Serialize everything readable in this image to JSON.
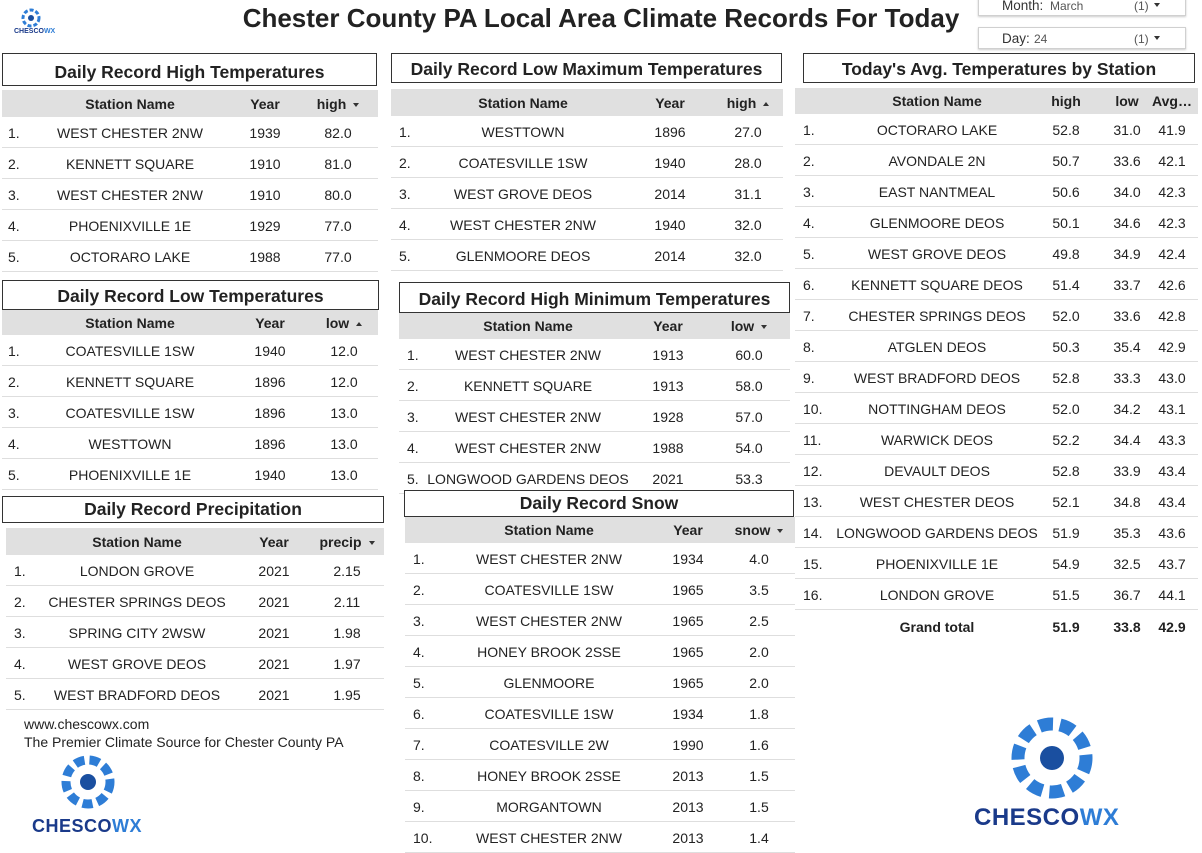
{
  "header": {
    "title": "Chester County PA Local Area Climate Records For Today",
    "logo": [
      "CHESCO",
      "WX"
    ]
  },
  "filters": [
    {
      "label": "Month:",
      "value": "March",
      "count": "(1)"
    },
    {
      "label": "Day:",
      "value": "24",
      "count": "(1)"
    }
  ],
  "tables": [
    {
      "title": "Daily Record High Temperatures",
      "columns": [
        "Station Name",
        "Year",
        "high"
      ],
      "sort_column": 2,
      "sort": "desc",
      "rows": [
        [
          "1.",
          "WEST CHESTER 2NW",
          "1939",
          "82.0"
        ],
        [
          "2.",
          "KENNETT SQUARE",
          "1910",
          "81.0"
        ],
        [
          "3.",
          "WEST CHESTER 2NW",
          "1910",
          "80.0"
        ],
        [
          "4.",
          "PHOENIXVILLE 1E",
          "1929",
          "77.0"
        ],
        [
          "5.",
          "OCTORARO LAKE",
          "1988",
          "77.0"
        ]
      ]
    },
    {
      "title": "Daily Record Low Maximum Temperatures",
      "columns": [
        "Station Name",
        "Year",
        "high"
      ],
      "sort_column": 2,
      "sort": "asc",
      "rows": [
        [
          "1.",
          "WESTTOWN",
          "1896",
          "27.0"
        ],
        [
          "2.",
          "COATESVILLE 1SW",
          "1940",
          "28.0"
        ],
        [
          "3.",
          "WEST GROVE DEOS",
          "2014",
          "31.1"
        ],
        [
          "4.",
          "WEST CHESTER 2NW",
          "1940",
          "32.0"
        ],
        [
          "5.",
          "GLENMOORE DEOS",
          "2014",
          "32.0"
        ]
      ]
    },
    {
      "title": "Today's Avg. Temperatures by Station",
      "columns": [
        "Station Name",
        "high",
        "low",
        "Avg…"
      ],
      "rows": [
        [
          "1.",
          "OCTORARO LAKE",
          "52.8",
          "31.0",
          "41.9"
        ],
        [
          "2.",
          "AVONDALE 2N",
          "50.7",
          "33.6",
          "42.1"
        ],
        [
          "3.",
          "EAST NANTMEAL",
          "50.6",
          "34.0",
          "42.3"
        ],
        [
          "4.",
          "GLENMOORE DEOS",
          "50.1",
          "34.6",
          "42.3"
        ],
        [
          "5.",
          "WEST GROVE DEOS",
          "49.8",
          "34.9",
          "42.4"
        ],
        [
          "6.",
          "KENNETT SQUARE DEOS",
          "51.4",
          "33.7",
          "42.6"
        ],
        [
          "7.",
          "CHESTER SPRINGS DEOS",
          "52.0",
          "33.6",
          "42.8"
        ],
        [
          "8.",
          "ATGLEN DEOS",
          "50.3",
          "35.4",
          "42.9"
        ],
        [
          "9.",
          "WEST BRADFORD DEOS",
          "52.8",
          "33.3",
          "43.0"
        ],
        [
          "10.",
          "NOTTINGHAM DEOS",
          "52.0",
          "34.2",
          "43.1"
        ],
        [
          "11.",
          "WARWICK DEOS",
          "52.2",
          "34.4",
          "43.3"
        ],
        [
          "12.",
          "DEVAULT DEOS",
          "52.8",
          "33.9",
          "43.4"
        ],
        [
          "13.",
          "WEST CHESTER DEOS",
          "52.1",
          "34.8",
          "43.4"
        ],
        [
          "14.",
          "LONGWOOD GARDENS DEOS",
          "51.9",
          "35.3",
          "43.6"
        ],
        [
          "15.",
          "PHOENIXVILLE 1E",
          "54.9",
          "32.5",
          "43.7"
        ],
        [
          "16.",
          "LONDON GROVE",
          "51.5",
          "36.7",
          "44.1"
        ]
      ],
      "total": [
        "Grand total",
        "51.9",
        "33.8",
        "42.9"
      ]
    },
    {
      "title": "Daily Record Low Temperatures",
      "columns": [
        "Station Name",
        "Year",
        "low"
      ],
      "sort_column": 2,
      "sort": "asc",
      "rows": [
        [
          "1.",
          "COATESVILLE 1SW",
          "1940",
          "12.0"
        ],
        [
          "2.",
          "KENNETT SQUARE",
          "1896",
          "12.0"
        ],
        [
          "3.",
          "COATESVILLE 1SW",
          "1896",
          "13.0"
        ],
        [
          "4.",
          "WESTTOWN",
          "1896",
          "13.0"
        ],
        [
          "5.",
          "PHOENIXVILLE 1E",
          "1940",
          "13.0"
        ]
      ]
    },
    {
      "title": "Daily Record High Minimum Temperatures",
      "columns": [
        "Station Name",
        "Year",
        "low"
      ],
      "sort_column": 2,
      "sort": "desc",
      "rows": [
        [
          "1.",
          "WEST CHESTER 2NW",
          "1913",
          "60.0"
        ],
        [
          "2.",
          "KENNETT SQUARE",
          "1913",
          "58.0"
        ],
        [
          "3.",
          "WEST CHESTER 2NW",
          "1928",
          "57.0"
        ],
        [
          "4.",
          "WEST CHESTER 2NW",
          "1988",
          "54.0"
        ],
        [
          "5.",
          "LONGWOOD GARDENS DEOS",
          "2021",
          "53.3"
        ]
      ]
    },
    {
      "title": "Daily Record Precipitation",
      "columns": [
        "Station Name",
        "Year",
        "precip"
      ],
      "sort_column": 2,
      "sort": "desc",
      "rows": [
        [
          "1.",
          "LONDON GROVE",
          "2021",
          "2.15"
        ],
        [
          "2.",
          "CHESTER SPRINGS DEOS",
          "2021",
          "2.11"
        ],
        [
          "3.",
          "SPRING CITY 2WSW",
          "2021",
          "1.98"
        ],
        [
          "4.",
          "WEST GROVE DEOS",
          "2021",
          "1.97"
        ],
        [
          "5.",
          "WEST BRADFORD DEOS",
          "2021",
          "1.95"
        ]
      ]
    },
    {
      "title": "Daily Record Snow",
      "columns": [
        "Station Name",
        "Year",
        "snow"
      ],
      "sort_column": 2,
      "sort": "desc",
      "rows": [
        [
          "1.",
          "WEST CHESTER 2NW",
          "1934",
          "4.0"
        ],
        [
          "2.",
          "COATESVILLE 1SW",
          "1965",
          "3.5"
        ],
        [
          "3.",
          "WEST CHESTER 2NW",
          "1965",
          "2.5"
        ],
        [
          "4.",
          "HONEY BROOK 2SSE",
          "1965",
          "2.0"
        ],
        [
          "5.",
          "GLENMOORE",
          "1965",
          "2.0"
        ],
        [
          "6.",
          "COATESVILLE 1SW",
          "1934",
          "1.8"
        ],
        [
          "7.",
          "COATESVILLE 2W",
          "1990",
          "1.6"
        ],
        [
          "8.",
          "HONEY BROOK 2SSE",
          "2013",
          "1.5"
        ],
        [
          "9.",
          "MORGANTOWN",
          "2013",
          "1.5"
        ],
        [
          "10.",
          "WEST CHESTER 2NW",
          "2013",
          "1.4"
        ]
      ]
    }
  ],
  "footer": {
    "website": "www.chescowx.com",
    "tagline": "The Premier Climate Source for Chester County PA"
  }
}
